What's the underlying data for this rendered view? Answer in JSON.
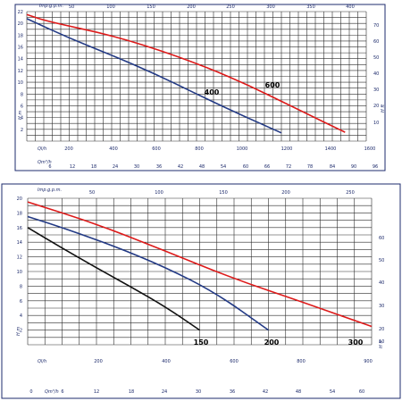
{
  "colors": {
    "red": "#dd1a1a",
    "blue": "#233a85",
    "black": "#101010",
    "axis": "#1e2b6e"
  },
  "chart_data": [
    {
      "type": "line",
      "top_axis": {
        "label": "Imp.g.p.m.",
        "ticks": [
          "50",
          "100",
          "150",
          "200",
          "250",
          "300",
          "350",
          "400"
        ]
      },
      "left_axis": {
        "label": "H m",
        "ticks": [
          "22",
          "20",
          "18",
          "16",
          "14",
          "12",
          "10",
          "8",
          "6",
          "4",
          "2"
        ],
        "ylim": [
          0,
          22
        ]
      },
      "right_axis": {
        "label": "H ft",
        "ticks": [
          "70",
          "60",
          "50",
          "40",
          "30",
          "20",
          "10"
        ]
      },
      "x1_axis": {
        "label": "Ql/h",
        "ticks": [
          "200",
          "400",
          "600",
          "800",
          "1000",
          "1200",
          "1400",
          "1600"
        ]
      },
      "x2_axis": {
        "label": "Qm³/h",
        "ticks": [
          "6",
          "12",
          "18",
          "24",
          "30",
          "36",
          "42",
          "48",
          "54",
          "60",
          "66",
          "72",
          "78",
          "84",
          "90",
          "96"
        ]
      },
      "xlim": [
        0,
        1600
      ],
      "series": [
        {
          "name": "600",
          "color": "red",
          "x": [
            0,
            100,
            400,
            700,
            1000,
            1300,
            1500
          ],
          "y": [
            21.5,
            20.3,
            18.0,
            14.6,
            10.3,
            5.0,
            1.5
          ]
        },
        {
          "name": "400",
          "color": "blue",
          "x": [
            0,
            200,
            400,
            600,
            800,
            1000,
            1200
          ],
          "y": [
            20.8,
            17.5,
            14.6,
            11.5,
            8.0,
            4.6,
            1.4
          ]
        }
      ]
    },
    {
      "type": "line",
      "top_axis": {
        "label": "Imp.g.p.m.",
        "ticks": [
          "50",
          "100",
          "150",
          "200",
          "250"
        ]
      },
      "left_axis": {
        "label": "H m",
        "ticks": [
          "20",
          "18",
          "16",
          "14",
          "12",
          "10",
          "8",
          "6",
          "4",
          "2"
        ],
        "ylim": [
          0,
          20
        ]
      },
      "right_axis": {
        "label": "H ft",
        "ticks": [
          "60",
          "50",
          "40",
          "30",
          "20",
          "10"
        ]
      },
      "x1_axis": {
        "label": "Ql/h",
        "ticks": [
          "200",
          "400",
          "600",
          "800",
          "900"
        ]
      },
      "x2_axis": {
        "label": "Qm³/h",
        "ticks": [
          "0",
          "6",
          "12",
          "18",
          "24",
          "30",
          "36",
          "42",
          "48",
          "54",
          "60"
        ]
      },
      "xlim": [
        0,
        1000
      ],
      "series": [
        {
          "name": "150",
          "color": "black",
          "x": [
            0,
            100,
            200,
            300,
            400,
            500
          ],
          "y": [
            16.0,
            13.2,
            10.5,
            7.9,
            5.2,
            2.0
          ]
        },
        {
          "name": "200",
          "color": "blue",
          "x": [
            0,
            100,
            250,
            400,
            550,
            700
          ],
          "y": [
            17.5,
            16.0,
            13.5,
            10.6,
            7.0,
            2.0
          ]
        },
        {
          "name": "300",
          "color": "red",
          "x": [
            0,
            200,
            400,
            600,
            800,
            1000
          ],
          "y": [
            19.5,
            16.5,
            12.8,
            9.0,
            5.8,
            2.5
          ]
        }
      ]
    }
  ]
}
